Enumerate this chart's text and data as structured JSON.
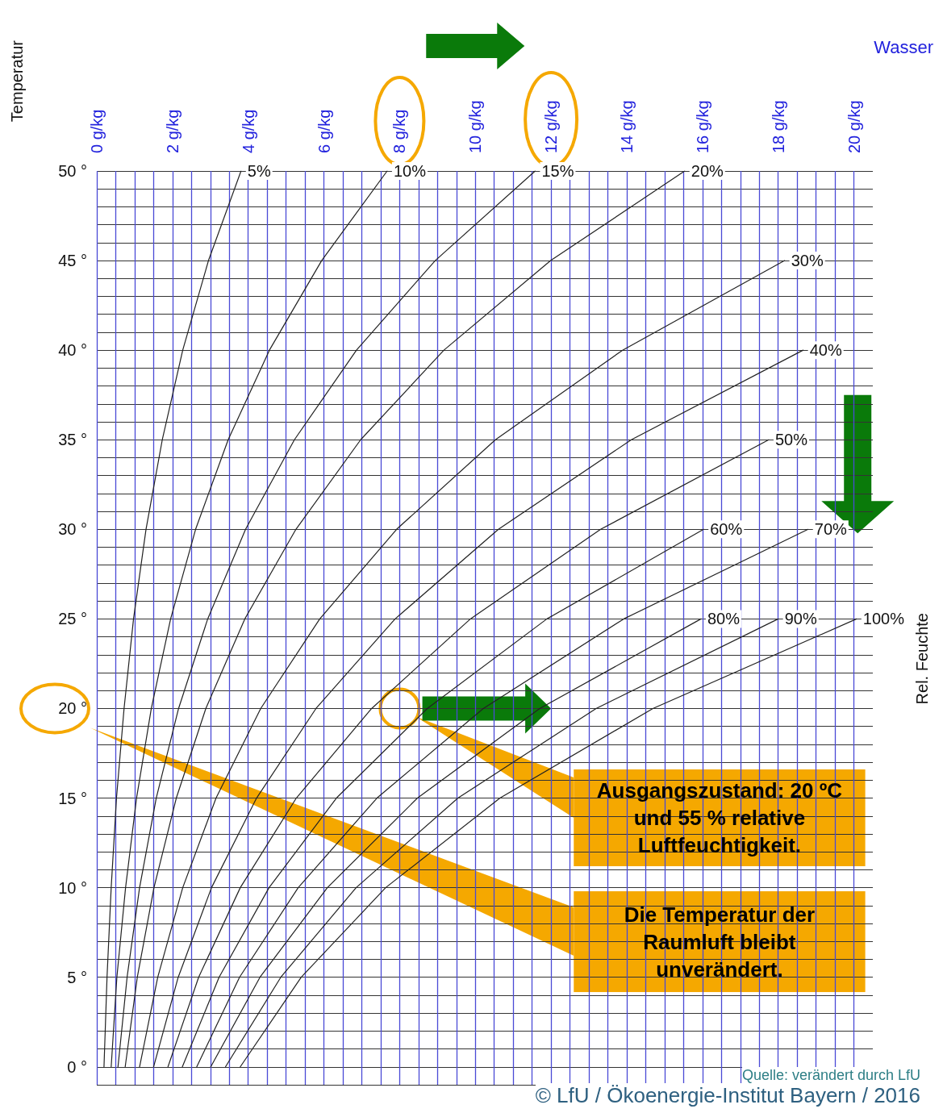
{
  "chart_data": {
    "type": "line",
    "xlabel": "Wasser",
    "ylabel": "Temperatur",
    "legend_title": "Rel. Feuchte",
    "xlim": [
      0,
      20.5
    ],
    "ylim": [
      -1,
      50
    ],
    "xticks": [
      {
        "value": 0,
        "label": "0 g/kg"
      },
      {
        "value": 0.5,
        "label": null
      },
      {
        "value": 1,
        "label": null
      },
      {
        "value": 1.5,
        "label": null
      },
      {
        "value": 2,
        "label": "2 g/kg"
      },
      {
        "value": 2.5,
        "label": null
      },
      {
        "value": 3,
        "label": null
      },
      {
        "value": 3.5,
        "label": null
      },
      {
        "value": 4,
        "label": "4 g/kg"
      },
      {
        "value": 4.5,
        "label": null
      },
      {
        "value": 5,
        "label": null
      },
      {
        "value": 5.5,
        "label": null
      },
      {
        "value": 6,
        "label": "6 g/kg"
      },
      {
        "value": 6.5,
        "label": null
      },
      {
        "value": 7,
        "label": null
      },
      {
        "value": 7.5,
        "label": null
      },
      {
        "value": 8,
        "label": "8 g/kg"
      },
      {
        "value": 8.5,
        "label": null
      },
      {
        "value": 9,
        "label": null
      },
      {
        "value": 9.5,
        "label": null
      },
      {
        "value": 10,
        "label": "10 g/kg"
      },
      {
        "value": 10.5,
        "label": null
      },
      {
        "value": 11,
        "label": null
      },
      {
        "value": 11.5,
        "label": null
      },
      {
        "value": 12,
        "label": "12 g/kg"
      },
      {
        "value": 12.5,
        "label": null
      },
      {
        "value": 13,
        "label": null
      },
      {
        "value": 13.5,
        "label": null
      },
      {
        "value": 14,
        "label": "14 g/kg"
      },
      {
        "value": 14.5,
        "label": null
      },
      {
        "value": 15,
        "label": null
      },
      {
        "value": 15.5,
        "label": null
      },
      {
        "value": 16,
        "label": "16 g/kg"
      },
      {
        "value": 16.5,
        "label": null
      },
      {
        "value": 17,
        "label": null
      },
      {
        "value": 17.5,
        "label": null
      },
      {
        "value": 18,
        "label": "18 g/kg"
      },
      {
        "value": 18.5,
        "label": null
      },
      {
        "value": 19,
        "label": null
      },
      {
        "value": 19.5,
        "label": null
      },
      {
        "value": 20,
        "label": "20 g/kg"
      }
    ],
    "yticks": [
      {
        "value": -1,
        "label": null
      },
      {
        "value": 0,
        "label": "0 °"
      },
      {
        "value": 1,
        "label": null
      },
      {
        "value": 2,
        "label": null
      },
      {
        "value": 3,
        "label": null
      },
      {
        "value": 4,
        "label": null
      },
      {
        "value": 5,
        "label": "5 °"
      },
      {
        "value": 6,
        "label": null
      },
      {
        "value": 7,
        "label": null
      },
      {
        "value": 8,
        "label": null
      },
      {
        "value": 9,
        "label": null
      },
      {
        "value": 10,
        "label": "10 °"
      },
      {
        "value": 11,
        "label": null
      },
      {
        "value": 12,
        "label": null
      },
      {
        "value": 13,
        "label": null
      },
      {
        "value": 14,
        "label": null
      },
      {
        "value": 15,
        "label": "15 °"
      },
      {
        "value": 16,
        "label": null
      },
      {
        "value": 17,
        "label": null
      },
      {
        "value": 18,
        "label": null
      },
      {
        "value": 19,
        "label": null
      },
      {
        "value": 20,
        "label": "20 °"
      },
      {
        "value": 21,
        "label": null
      },
      {
        "value": 22,
        "label": null
      },
      {
        "value": 23,
        "label": null
      },
      {
        "value": 24,
        "label": null
      },
      {
        "value": 25,
        "label": "25 °"
      },
      {
        "value": 26,
        "label": null
      },
      {
        "value": 27,
        "label": null
      },
      {
        "value": 28,
        "label": null
      },
      {
        "value": 29,
        "label": null
      },
      {
        "value": 30,
        "label": "30 °"
      },
      {
        "value": 31,
        "label": null
      },
      {
        "value": 32,
        "label": null
      },
      {
        "value": 33,
        "label": null
      },
      {
        "value": 34,
        "label": null
      },
      {
        "value": 35,
        "label": "35 °"
      },
      {
        "value": 36,
        "label": null
      },
      {
        "value": 37,
        "label": null
      },
      {
        "value": 38,
        "label": null
      },
      {
        "value": 39,
        "label": null
      },
      {
        "value": 40,
        "label": "40 °"
      },
      {
        "value": 41,
        "label": null
      },
      {
        "value": 42,
        "label": null
      },
      {
        "value": 43,
        "label": null
      },
      {
        "value": 44,
        "label": null
      },
      {
        "value": 45,
        "label": "45 °"
      },
      {
        "value": 46,
        "label": null
      },
      {
        "value": 47,
        "label": null
      },
      {
        "value": 48,
        "label": null
      },
      {
        "value": 49,
        "label": null
      },
      {
        "value": 50,
        "label": "50 °"
      }
    ],
    "grid": true,
    "legend": false,
    "marker": "none",
    "line_style": "solid",
    "series": [
      {
        "name": "5%",
        "color": "#222222",
        "x": [
          0.19,
          0.27,
          0.38,
          0.52,
          0.72,
          0.97,
          1.3,
          1.73,
          2.27,
          2.95,
          3.81
        ],
        "values": [
          0,
          5,
          10,
          15,
          20,
          25,
          30,
          35,
          40,
          45,
          50
        ]
      },
      {
        "name": "10%",
        "color": "#222222",
        "x": [
          0.38,
          0.53,
          0.76,
          1.05,
          1.44,
          1.95,
          2.61,
          3.47,
          4.56,
          5.94,
          7.67
        ],
        "values": [
          0,
          5,
          10,
          15,
          20,
          25,
          30,
          35,
          40,
          45,
          50
        ]
      },
      {
        "name": "15%",
        "color": "#222222",
        "x": [
          0.56,
          0.8,
          1.13,
          1.57,
          2.16,
          2.93,
          3.93,
          5.22,
          6.86,
          8.94,
          11.58
        ],
        "values": [
          0,
          5,
          10,
          15,
          20,
          25,
          30,
          35,
          40,
          45,
          50
        ]
      },
      {
        "name": "20%",
        "color": "#222222",
        "x": [
          0.75,
          1.07,
          1.51,
          2.1,
          2.88,
          3.91,
          5.26,
          6.97,
          9.17,
          11.99,
          15.53
        ],
        "values": [
          0,
          5,
          10,
          15,
          20,
          25,
          30,
          35,
          40,
          45,
          50
        ]
      },
      {
        "name": "30%",
        "color": "#222222",
        "x": [
          1.13,
          1.61,
          2.27,
          3.15,
          4.33,
          5.89,
          7.92,
          10.53,
          13.89,
          18.17
        ],
        "values": [
          0,
          5,
          10,
          15,
          20,
          25,
          30,
          35,
          40,
          45
        ]
      },
      {
        "name": "40%",
        "color": "#222222",
        "x": [
          1.5,
          2.15,
          3.03,
          4.22,
          5.79,
          7.88,
          10.61,
          14.12,
          18.66
        ],
        "values": [
          0,
          5,
          10,
          15,
          20,
          25,
          30,
          35,
          40
        ]
      },
      {
        "name": "50%",
        "color": "#222222",
        "x": [
          1.88,
          2.69,
          3.79,
          5.27,
          7.26,
          9.87,
          13.31,
          17.75
        ],
        "values": [
          0,
          5,
          10,
          15,
          20,
          25,
          30,
          35
        ]
      },
      {
        "name": "60%",
        "color": "#222222",
        "x": [
          2.26,
          3.23,
          4.55,
          6.33,
          8.73,
          11.89,
          16.03
        ],
        "values": [
          0,
          5,
          10,
          15,
          20,
          25,
          30
        ]
      },
      {
        "name": "70%",
        "color": "#222222",
        "x": [
          2.64,
          3.77,
          5.32,
          7.4,
          10.21,
          13.92,
          18.79
        ],
        "values": [
          0,
          5,
          10,
          15,
          20,
          25,
          30
        ]
      },
      {
        "name": "80%",
        "color": "#222222",
        "x": [
          3.01,
          4.31,
          6.09,
          8.47,
          11.7,
          15.96
        ],
        "values": [
          0,
          5,
          10,
          15,
          20,
          25
        ]
      },
      {
        "name": "90%",
        "color": "#222222",
        "x": [
          3.4,
          4.86,
          6.85,
          9.54,
          13.19,
          18.0
        ],
        "values": [
          0,
          5,
          10,
          15,
          20,
          25
        ]
      },
      {
        "name": "100%",
        "color": "#222222",
        "x": [
          3.79,
          5.4,
          7.63,
          10.65,
          14.69,
          20.07
        ],
        "values": [
          0,
          5,
          10,
          15,
          20,
          25
        ]
      }
    ],
    "annotations": [
      "Ausgangszustand: 20 ºC und 55 % relative Luftfeuchtigkeit.",
      "Die Temperatur der Raumluft bleibt unverändert.",
      "Quelle: verändert durch LfU",
      "© LfU / Ökoenergie-Institut Bayern / 2016"
    ]
  }
}
